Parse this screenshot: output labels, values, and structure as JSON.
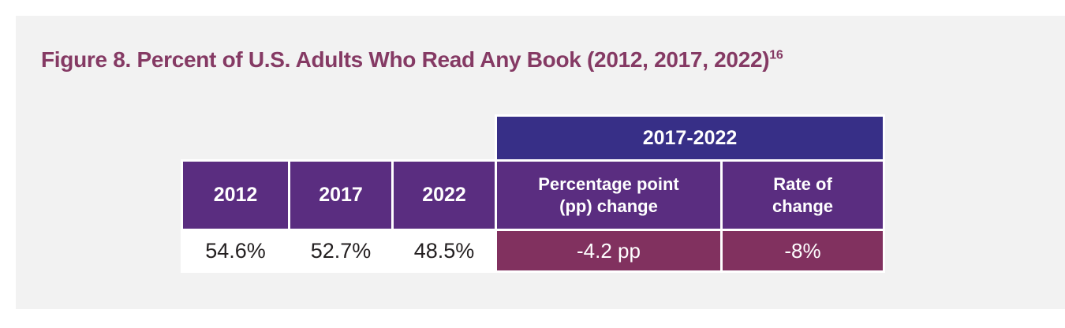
{
  "figure": {
    "title": "Figure 8. Percent of U.S. Adults Who Read Any Book (2012, 2017, 2022)",
    "title_superscript": "16"
  },
  "table": {
    "span_header": "2017-2022",
    "columns": [
      {
        "header": "2012",
        "value": "54.6%"
      },
      {
        "header": "2017",
        "value": "52.7%"
      },
      {
        "header": "2022",
        "value": "48.5%"
      },
      {
        "header_lines": [
          "Percentage point",
          "(pp) change"
        ],
        "value": "-4.2 pp"
      },
      {
        "header_lines": [
          "Rate of",
          "change"
        ],
        "value": "-8%"
      }
    ]
  },
  "chart_data": {
    "type": "table",
    "title": "Figure 8. Percent of U.S. Adults Who Read Any Book (2012, 2017, 2022)",
    "footnote_reference": "16",
    "categories": [
      "2012",
      "2017",
      "2022"
    ],
    "values_percent": [
      54.6,
      52.7,
      48.5
    ],
    "change_2017_2022": {
      "percentage_point_change": "-4.2 pp",
      "rate_of_change": "-8%"
    }
  },
  "colors": {
    "page_background": "#ffffff",
    "card_background": "#f2f2f2",
    "title_text": "#853a64",
    "span_header_background": "#372f87",
    "column_header_background": "#5a2d80",
    "change_cell_background": "#81315f",
    "data_text": "#231f20",
    "cell_border": "#ffffff"
  }
}
